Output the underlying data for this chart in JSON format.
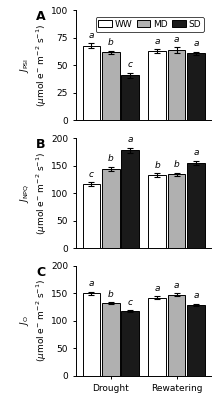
{
  "panels": [
    {
      "label": "A",
      "ylabel_main": "$J_{\\rm PSI}$",
      "ylabel_unit": "($\\mu$mol e$^{-}$ m$^{-2}$ s$^{-1}$)",
      "ylim": [
        0,
        100
      ],
      "yticks": [
        0,
        25,
        50,
        75,
        100
      ],
      "drought": [
        68,
        62,
        41
      ],
      "drought_err": [
        2.0,
        1.5,
        2.5
      ],
      "drought_letters": [
        "a",
        "b",
        "c"
      ],
      "rewater": [
        63,
        64,
        61
      ],
      "rewater_err": [
        1.5,
        2.5,
        1.5
      ],
      "rewater_letters": [
        "a",
        "a",
        "a"
      ]
    },
    {
      "label": "B",
      "ylabel_main": "$J_{\\rm NPQ}$",
      "ylabel_unit": "($\\mu$mol e$^{-}$ m$^{-2}$ s$^{-1}$)",
      "ylim": [
        0,
        200
      ],
      "yticks": [
        0,
        50,
        100,
        150,
        200
      ],
      "drought": [
        116,
        144,
        178
      ],
      "drought_err": [
        3.5,
        4.0,
        4.5
      ],
      "drought_letters": [
        "c",
        "b",
        "a"
      ],
      "rewater": [
        133,
        134,
        155
      ],
      "rewater_err": [
        3.0,
        3.0,
        4.0
      ],
      "rewater_letters": [
        "b",
        "b",
        "a"
      ]
    },
    {
      "label": "C",
      "ylabel_main": "$J_{\\rm O}$",
      "ylabel_unit": "($\\mu$mol e$^{-}$ m$^{-2}$ s$^{-1}$)",
      "ylim": [
        0,
        200
      ],
      "yticks": [
        0,
        50,
        100,
        150,
        200
      ],
      "drought": [
        150,
        132,
        117
      ],
      "drought_err": [
        3.0,
        2.0,
        2.0
      ],
      "drought_letters": [
        "a",
        "b",
        "c"
      ],
      "rewater": [
        142,
        147,
        129
      ],
      "rewater_err": [
        3.0,
        2.5,
        2.0
      ],
      "rewater_letters": [
        "a",
        "a",
        "a"
      ]
    }
  ],
  "bar_colors": [
    "white",
    "#b0b0b0",
    "#1a1a1a"
  ],
  "bar_edgecolor": "black",
  "legend_labels": [
    "WW",
    "MD",
    "SD"
  ],
  "group_labels": [
    "Drought",
    "Rewatering"
  ],
  "letter_fontsize": 6.5,
  "axis_label_fontsize": 6.5,
  "tick_fontsize": 6.5,
  "panel_label_fontsize": 9,
  "legend_fontsize": 6.5
}
